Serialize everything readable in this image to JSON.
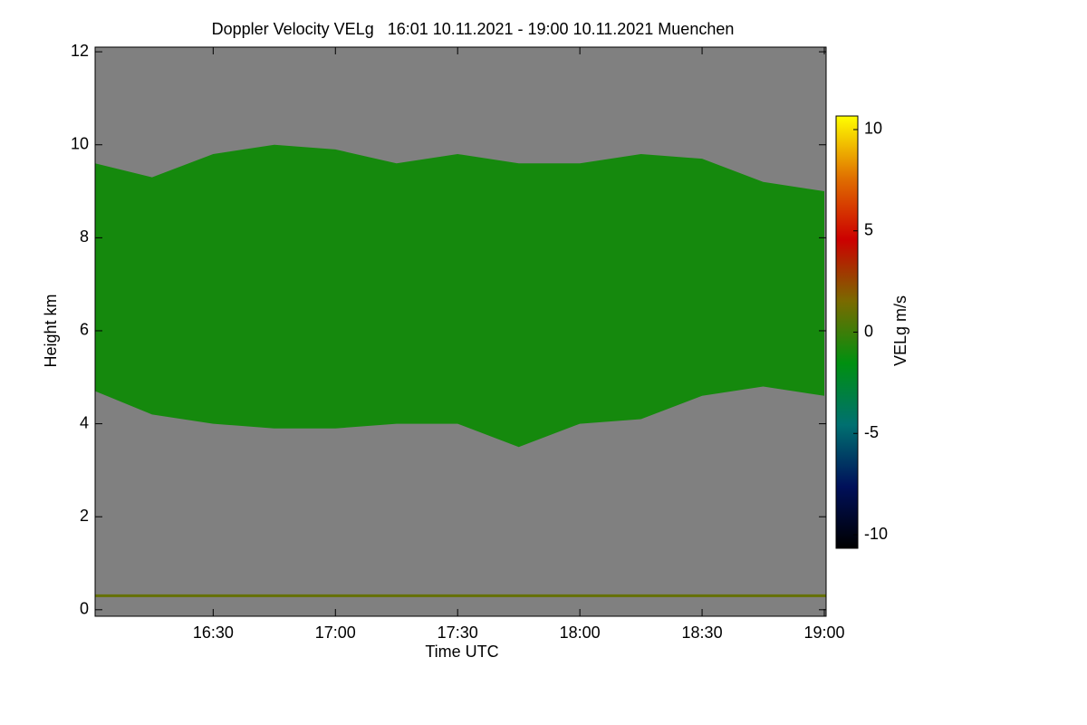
{
  "chart_data": {
    "type": "heatmap",
    "title": "Doppler Velocity VELg   16:01 10.11.2021 - 19:00 10.11.2021 Muenchen",
    "x_label": "Time UTC",
    "y_label": "Height km",
    "colorbar_label": "VELg m/s",
    "xlim": [
      16.017,
      19.0
    ],
    "xticks": [
      {
        "value": 16.5,
        "label": "16:30"
      },
      {
        "value": 17.0,
        "label": "17:00"
      },
      {
        "value": 17.5,
        "label": "17:30"
      },
      {
        "value": 18.0,
        "label": "18:00"
      },
      {
        "value": 18.5,
        "label": "18:30"
      },
      {
        "value": 19.0,
        "label": "19:00"
      }
    ],
    "ylim": [
      -0.14,
      12.1
    ],
    "yticks": [
      0,
      2,
      4,
      6,
      8,
      10,
      12
    ],
    "clim": [
      -10.67,
      10.67
    ],
    "cticks": [
      -10,
      -5,
      0,
      5,
      10
    ],
    "colormap": [
      "#000000",
      "#00105a",
      "#007070",
      "#009010",
      "#7a6a00",
      "#cc0000",
      "#e07000",
      "#ffff00"
    ],
    "background": "#808080",
    "x": [
      16.017,
      16.25,
      16.5,
      16.75,
      17.0,
      17.25,
      17.5,
      17.75,
      18.0,
      18.25,
      18.5,
      18.75,
      19.0
    ],
    "cloud_top": [
      9.6,
      9.3,
      9.8,
      10.0,
      9.9,
      9.6,
      9.8,
      9.6,
      9.6,
      9.8,
      9.7,
      9.2,
      9.0
    ],
    "cloud_base": [
      4.7,
      4.2,
      4.0,
      3.9,
      3.9,
      4.0,
      4.0,
      3.5,
      4.0,
      4.1,
      4.6,
      4.8,
      4.6
    ],
    "cloud_velocity": -1,
    "surface_layer_height": 0.3,
    "surface_layer_velocity": 1
  }
}
